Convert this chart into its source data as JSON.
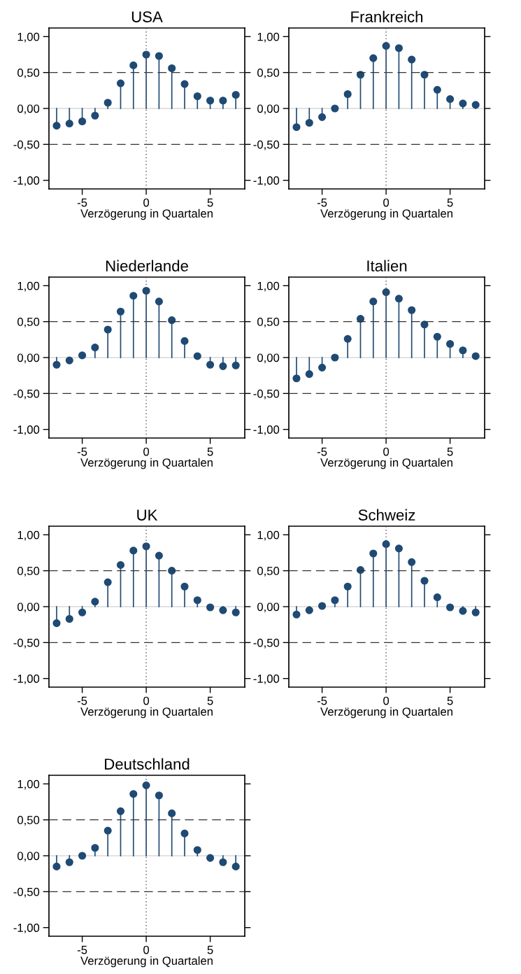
{
  "chart_data": [
    {
      "type": "lollipop",
      "title": "USA",
      "xlabel": "Verzögerung in Quartalen",
      "x": [
        -7,
        -6,
        -5,
        -4,
        -3,
        -2,
        -1,
        0,
        1,
        2,
        3,
        4,
        5,
        6,
        7
      ],
      "values": [
        -0.24,
        -0.21,
        -0.18,
        -0.1,
        0.08,
        0.35,
        0.6,
        0.75,
        0.73,
        0.56,
        0.34,
        0.17,
        0.11,
        0.11,
        0.19
      ],
      "color": "#1f4a73",
      "marker": "circle",
      "grid": false,
      "xlim": [
        -7.6,
        7.7
      ],
      "ylim": [
        -1.12,
        1.12
      ],
      "xticks": [
        -5,
        0,
        5
      ],
      "yticks": [
        {
          "value": -1,
          "label": "-1,00"
        },
        {
          "value": -0.5,
          "label": "-0,50"
        },
        {
          "value": 0,
          "label": "0,00"
        },
        {
          "value": 0.5,
          "label": "0,50"
        },
        {
          "value": 1,
          "label": "1,00"
        }
      ],
      "ref_lines": [
        {
          "axis": "y",
          "value": 0,
          "color": "#d9d9d9",
          "line_style": "solid"
        },
        {
          "axis": "y",
          "value": 0.5,
          "color": "#333333",
          "line_style": "dashed"
        },
        {
          "axis": "y",
          "value": -0.5,
          "color": "#333333",
          "line_style": "dashed"
        },
        {
          "axis": "x",
          "value": 0,
          "color": "#555555",
          "line_style": "dotted"
        }
      ]
    },
    {
      "type": "lollipop",
      "title": "Frankreich",
      "xlabel": "Verzögerung in Quartalen",
      "x": [
        -7,
        -6,
        -5,
        -4,
        -3,
        -2,
        -1,
        0,
        1,
        2,
        3,
        4,
        5,
        6,
        7
      ],
      "values": [
        -0.26,
        -0.2,
        -0.12,
        0.0,
        0.2,
        0.47,
        0.7,
        0.87,
        0.84,
        0.68,
        0.47,
        0.26,
        0.13,
        0.07,
        0.05
      ],
      "color": "#1f4a73",
      "marker": "circle",
      "grid": false,
      "xlim": [
        -7.6,
        7.7
      ],
      "ylim": [
        -1.12,
        1.12
      ],
      "xticks": [
        -5,
        0,
        5
      ],
      "yticks": [
        {
          "value": -1,
          "label": "-1,00"
        },
        {
          "value": -0.5,
          "label": "-0,50"
        },
        {
          "value": 0,
          "label": "0,00"
        },
        {
          "value": 0.5,
          "label": "0,50"
        },
        {
          "value": 1,
          "label": "1,00"
        }
      ],
      "ref_lines": [
        {
          "axis": "y",
          "value": 0,
          "color": "#d9d9d9",
          "line_style": "solid"
        },
        {
          "axis": "y",
          "value": 0.5,
          "color": "#333333",
          "line_style": "dashed"
        },
        {
          "axis": "y",
          "value": -0.5,
          "color": "#333333",
          "line_style": "dashed"
        },
        {
          "axis": "x",
          "value": 0,
          "color": "#555555",
          "line_style": "dotted"
        }
      ]
    },
    {
      "type": "lollipop",
      "title": "Niederlande",
      "xlabel": "Verzögerung in Quartalen",
      "x": [
        -7,
        -6,
        -5,
        -4,
        -3,
        -2,
        -1,
        0,
        1,
        2,
        3,
        4,
        5,
        6,
        7
      ],
      "values": [
        -0.1,
        -0.04,
        0.03,
        0.14,
        0.39,
        0.64,
        0.86,
        0.93,
        0.78,
        0.52,
        0.23,
        0.02,
        -0.1,
        -0.12,
        -0.11
      ],
      "color": "#1f4a73",
      "marker": "circle",
      "grid": false,
      "xlim": [
        -7.6,
        7.7
      ],
      "ylim": [
        -1.12,
        1.12
      ],
      "xticks": [
        -5,
        0,
        5
      ],
      "yticks": [
        {
          "value": -1,
          "label": "-1,00"
        },
        {
          "value": -0.5,
          "label": "-0,50"
        },
        {
          "value": 0,
          "label": "0,00"
        },
        {
          "value": 0.5,
          "label": "0,50"
        },
        {
          "value": 1,
          "label": "1,00"
        }
      ],
      "ref_lines": [
        {
          "axis": "y",
          "value": 0,
          "color": "#d9d9d9",
          "line_style": "solid"
        },
        {
          "axis": "y",
          "value": 0.5,
          "color": "#333333",
          "line_style": "dashed"
        },
        {
          "axis": "y",
          "value": -0.5,
          "color": "#333333",
          "line_style": "dashed"
        },
        {
          "axis": "x",
          "value": 0,
          "color": "#555555",
          "line_style": "dotted"
        }
      ]
    },
    {
      "type": "lollipop",
      "title": "Italien",
      "xlabel": "Verzögerung in Quartalen",
      "x": [
        -7,
        -6,
        -5,
        -4,
        -3,
        -2,
        -1,
        0,
        1,
        2,
        3,
        4,
        5,
        6,
        7
      ],
      "values": [
        -0.29,
        -0.23,
        -0.14,
        0.0,
        0.26,
        0.54,
        0.78,
        0.91,
        0.82,
        0.66,
        0.46,
        0.29,
        0.19,
        0.1,
        0.02
      ],
      "color": "#1f4a73",
      "marker": "circle",
      "grid": false,
      "xlim": [
        -7.6,
        7.7
      ],
      "ylim": [
        -1.12,
        1.12
      ],
      "xticks": [
        -5,
        0,
        5
      ],
      "yticks": [
        {
          "value": -1,
          "label": "-1,00"
        },
        {
          "value": -0.5,
          "label": "-0,50"
        },
        {
          "value": 0,
          "label": "0,00"
        },
        {
          "value": 0.5,
          "label": "0,50"
        },
        {
          "value": 1,
          "label": "1,00"
        }
      ],
      "ref_lines": [
        {
          "axis": "y",
          "value": 0,
          "color": "#d9d9d9",
          "line_style": "solid"
        },
        {
          "axis": "y",
          "value": 0.5,
          "color": "#333333",
          "line_style": "dashed"
        },
        {
          "axis": "y",
          "value": -0.5,
          "color": "#333333",
          "line_style": "dashed"
        },
        {
          "axis": "x",
          "value": 0,
          "color": "#555555",
          "line_style": "dotted"
        }
      ]
    },
    {
      "type": "lollipop",
      "title": "UK",
      "xlabel": "Verzögerung in Quartalen",
      "x": [
        -7,
        -6,
        -5,
        -4,
        -3,
        -2,
        -1,
        0,
        1,
        2,
        3,
        4,
        5,
        6,
        7
      ],
      "values": [
        -0.23,
        -0.17,
        -0.08,
        0.07,
        0.34,
        0.58,
        0.78,
        0.84,
        0.71,
        0.5,
        0.28,
        0.09,
        -0.01,
        -0.05,
        -0.08
      ],
      "color": "#1f4a73",
      "marker": "circle",
      "grid": false,
      "xlim": [
        -7.6,
        7.7
      ],
      "ylim": [
        -1.12,
        1.12
      ],
      "xticks": [
        -5,
        0,
        5
      ],
      "yticks": [
        {
          "value": -1,
          "label": "-1,00"
        },
        {
          "value": -0.5,
          "label": "-0,50"
        },
        {
          "value": 0,
          "label": "0,00"
        },
        {
          "value": 0.5,
          "label": "0,50"
        },
        {
          "value": 1,
          "label": "1,00"
        }
      ],
      "ref_lines": [
        {
          "axis": "y",
          "value": 0,
          "color": "#d9d9d9",
          "line_style": "solid"
        },
        {
          "axis": "y",
          "value": 0.5,
          "color": "#333333",
          "line_style": "dashed"
        },
        {
          "axis": "y",
          "value": -0.5,
          "color": "#333333",
          "line_style": "dashed"
        },
        {
          "axis": "x",
          "value": 0,
          "color": "#555555",
          "line_style": "dotted"
        }
      ]
    },
    {
      "type": "lollipop",
      "title": "Schweiz",
      "xlabel": "Verzögerung in Quartalen",
      "x": [
        -7,
        -6,
        -5,
        -4,
        -3,
        -2,
        -1,
        0,
        1,
        2,
        3,
        4,
        5,
        6,
        7
      ],
      "values": [
        -0.11,
        -0.05,
        0.01,
        0.09,
        0.28,
        0.51,
        0.74,
        0.87,
        0.81,
        0.62,
        0.36,
        0.13,
        -0.01,
        -0.06,
        -0.08
      ],
      "color": "#1f4a73",
      "marker": "circle",
      "grid": false,
      "xlim": [
        -7.6,
        7.7
      ],
      "ylim": [
        -1.12,
        1.12
      ],
      "xticks": [
        -5,
        0,
        5
      ],
      "yticks": [
        {
          "value": -1,
          "label": "-1,00"
        },
        {
          "value": -0.5,
          "label": "-0,50"
        },
        {
          "value": 0,
          "label": "0,00"
        },
        {
          "value": 0.5,
          "label": "0,50"
        },
        {
          "value": 1,
          "label": "1,00"
        }
      ],
      "ref_lines": [
        {
          "axis": "y",
          "value": 0,
          "color": "#d9d9d9",
          "line_style": "solid"
        },
        {
          "axis": "y",
          "value": 0.5,
          "color": "#333333",
          "line_style": "dashed"
        },
        {
          "axis": "y",
          "value": -0.5,
          "color": "#333333",
          "line_style": "dashed"
        },
        {
          "axis": "x",
          "value": 0,
          "color": "#555555",
          "line_style": "dotted"
        }
      ]
    },
    {
      "type": "lollipop",
      "title": "Deutschland",
      "xlabel": "Verzögerung in Quartalen",
      "x": [
        -7,
        -6,
        -5,
        -4,
        -3,
        -2,
        -1,
        0,
        1,
        2,
        3,
        4,
        5,
        6,
        7
      ],
      "values": [
        -0.15,
        -0.09,
        0.0,
        0.11,
        0.35,
        0.62,
        0.86,
        0.98,
        0.84,
        0.59,
        0.31,
        0.08,
        -0.03,
        -0.09,
        -0.15
      ],
      "color": "#1f4a73",
      "marker": "circle",
      "grid": false,
      "xlim": [
        -7.6,
        7.7
      ],
      "ylim": [
        -1.12,
        1.12
      ],
      "xticks": [
        -5,
        0,
        5
      ],
      "yticks": [
        {
          "value": -1,
          "label": "-1,00"
        },
        {
          "value": -0.5,
          "label": "-0,50"
        },
        {
          "value": 0,
          "label": "0,00"
        },
        {
          "value": 0.5,
          "label": "0,50"
        },
        {
          "value": 1,
          "label": "1,00"
        }
      ],
      "ref_lines": [
        {
          "axis": "y",
          "value": 0,
          "color": "#d9d9d9",
          "line_style": "solid"
        },
        {
          "axis": "y",
          "value": 0.5,
          "color": "#333333",
          "line_style": "dashed"
        },
        {
          "axis": "y",
          "value": -0.5,
          "color": "#333333",
          "line_style": "dashed"
        },
        {
          "axis": "x",
          "value": 0,
          "color": "#555555",
          "line_style": "dotted"
        }
      ]
    }
  ]
}
